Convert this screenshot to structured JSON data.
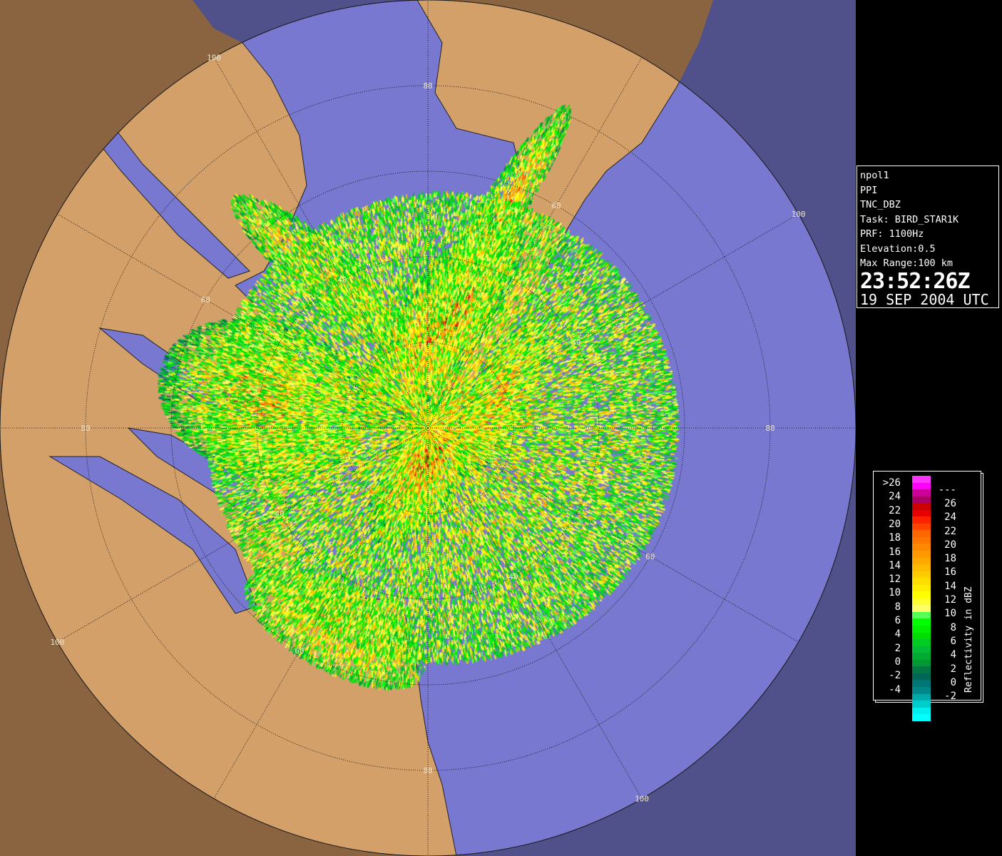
{
  "info_panel": {
    "lines": [
      "npol1",
      "PPI",
      "TNC_DBZ",
      "Task: BIRD_STAR1K",
      "PRF: 1100Hz",
      "Elevation:0.5",
      "Max Range:100 km"
    ],
    "time": "23:52:26Z",
    "date": "19 SEP 2004 UTC"
  },
  "legend": {
    "title": "Reflectivity in dBZ",
    "left_labels": [
      ">26",
      "24",
      "22",
      "20",
      "18",
      "16",
      "14",
      "12",
      "10",
      "8",
      "6",
      "4",
      "2",
      "0",
      "-2",
      "-4"
    ],
    "right_labels": [
      "---",
      "26",
      "24",
      "22",
      "20",
      "18",
      "16",
      "14",
      "12",
      "10",
      "8",
      "6",
      "4",
      "2",
      "0",
      "-2"
    ],
    "colors": [
      "#ff33ff",
      "#ff00ff",
      "#cc0099",
      "#aa0066",
      "#cc0000",
      "#e60000",
      "#ff2200",
      "#ff4400",
      "#ff6600",
      "#ff7700",
      "#ff8800",
      "#ff9900",
      "#ffaa00",
      "#ffbb00",
      "#ffcc00",
      "#ffdd00",
      "#ffee00",
      "#ffff00",
      "#ffff33",
      "#ffff66",
      "#55ff55",
      "#00ff00",
      "#00ee00",
      "#00dd00",
      "#00cc22",
      "#00bb33",
      "#00aa33",
      "#009933",
      "#007744",
      "#006655",
      "#007777",
      "#008888",
      "#00aaaa",
      "#00cccc",
      "#00eeee",
      "#00ffff"
    ]
  },
  "map": {
    "range_rings_km": [
      "20",
      "40",
      "60",
      "80",
      "100"
    ],
    "colors": {
      "land_in": "#d4a06a",
      "land_out": "#8a6440",
      "water_in": "#7878d0",
      "water_out": "#50508a",
      "grid": "#000000"
    }
  }
}
